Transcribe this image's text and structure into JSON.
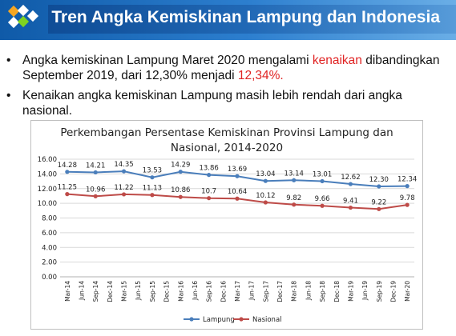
{
  "header": {
    "title": "Tren Angka Kemiskinan Lampung dan Indonesia"
  },
  "bullets": [
    {
      "before": "Angka kemiskinan Lampung Maret 2020 mengalami ",
      "highlight1": "kenaikan",
      "middle": " dibandingkan September 2019, dari 12,30% menjadi ",
      "highlight2": "12,34%.",
      "after": ""
    },
    {
      "text": "Kenaikan angka kemiskinan Lampung masih lebih rendah dari angka nasional."
    }
  ],
  "colors": {
    "lampung": "#4a7ebb",
    "nasional": "#be4b48",
    "highlight": "#e02424",
    "banner": "#1f6dbf"
  },
  "chart_data": {
    "type": "line",
    "title": "Perkembangan Persentase Kemiskinan Provinsi Lampung dan Nasional, 2014-2020",
    "title_lines": [
      "Perkembangan Persentase Kemiskinan Provinsi Lampung dan",
      "Nasional, 2014-2020"
    ],
    "categories": [
      "Mar-14",
      "Jun-14",
      "Sep-14",
      "Dec-14",
      "Mar-15",
      "Jun-15",
      "Sep-15",
      "Dec-15",
      "Mar-16",
      "Jun-16",
      "Sep-16",
      "Dec-16",
      "Mar-17",
      "Jun-17",
      "Sep-17",
      "Dec-17",
      "Mar-18",
      "Jun-18",
      "Sep-18",
      "Dec-18",
      "Mar-19",
      "Jun-19",
      "Sep-19",
      "Dec-19",
      "Mar-20"
    ],
    "ylim": [
      0,
      16
    ],
    "yticks": [
      "0.00",
      "2.00",
      "4.00",
      "6.00",
      "8.00",
      "10.00",
      "12.00",
      "14.00",
      "16.00"
    ],
    "grid": true,
    "legend_position": "bottom",
    "series": [
      {
        "name": "Lampung",
        "x": [
          "Mar-14",
          "Sep-14",
          "Mar-15",
          "Sep-15",
          "Mar-16",
          "Sep-16",
          "Mar-17",
          "Sep-17",
          "Mar-18",
          "Sep-18",
          "Mar-19",
          "Sep-19",
          "Mar-20"
        ],
        "values": [
          14.28,
          14.21,
          14.35,
          13.53,
          14.29,
          13.86,
          13.69,
          13.04,
          13.14,
          13.01,
          12.62,
          12.3,
          12.34
        ],
        "labels": [
          "14.28",
          "14.21",
          "14.35",
          "13.53",
          "14.29",
          "13.86",
          "13.69",
          "13.04",
          "13.14",
          "13.01",
          "12.62",
          "12.30",
          "12.34"
        ]
      },
      {
        "name": "Nasional",
        "x": [
          "Mar-14",
          "Sep-14",
          "Mar-15",
          "Sep-15",
          "Mar-16",
          "Sep-16",
          "Mar-17",
          "Sep-17",
          "Mar-18",
          "Sep-18",
          "Mar-19",
          "Sep-19",
          "Mar-20"
        ],
        "values": [
          11.25,
          10.96,
          11.22,
          11.13,
          10.86,
          10.7,
          10.64,
          10.12,
          9.82,
          9.66,
          9.41,
          9.22,
          9.78
        ],
        "labels": [
          "11.25",
          "10.96",
          "11.22",
          "11.13",
          "10.86",
          "10.7",
          "10.64",
          "10.12",
          "9.82",
          "9.66",
          "9.41",
          "9.22",
          "9.78"
        ]
      }
    ]
  }
}
